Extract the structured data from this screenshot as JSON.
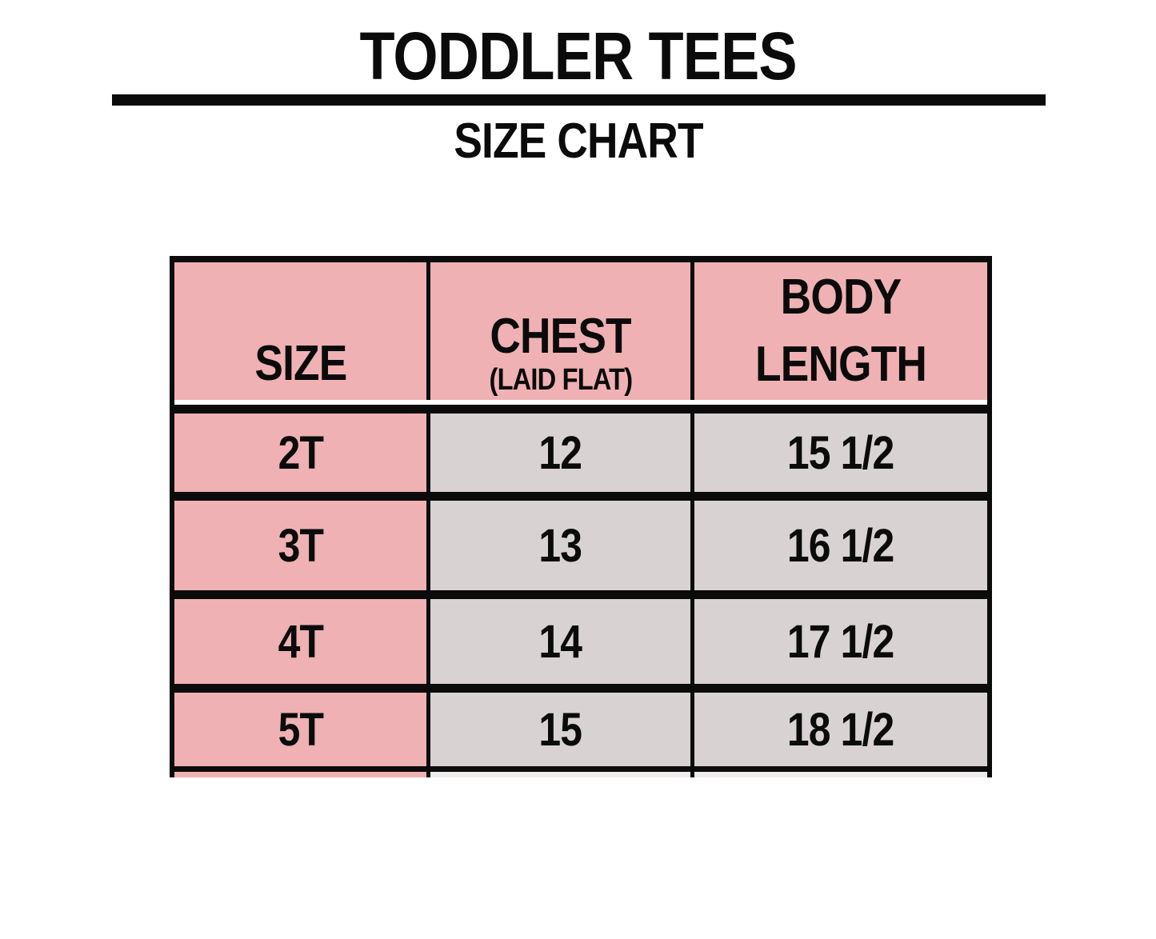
{
  "page": {
    "title": "TODDLER TEES",
    "subtitle": "SIZE CHART"
  },
  "table": {
    "headers": {
      "size": "SIZE",
      "chest": "CHEST",
      "chest_sub": "(LAID FLAT)",
      "body_length": "BODY LENGTH"
    },
    "rows": [
      {
        "size": "2T",
        "chest": "12",
        "body_length": "15 1/2"
      },
      {
        "size": "3T",
        "chest": "13",
        "body_length": "16 1/2"
      },
      {
        "size": "4T",
        "chest": "14",
        "body_length": "17 1/2"
      },
      {
        "size": "5T",
        "chest": "15",
        "body_length": "18 1/2"
      }
    ]
  },
  "colors": {
    "header_pink": "#efb1b3",
    "cell_gray": "#d8d2d3",
    "border_black": "#0b0b0b"
  },
  "chart_data": {
    "type": "table",
    "title": "TODDLER TEES",
    "subtitle": "SIZE CHART",
    "columns": [
      "SIZE",
      "CHEST (LAID FLAT)",
      "BODY LENGTH"
    ],
    "rows": [
      [
        "2T",
        "12",
        "15 1/2"
      ],
      [
        "3T",
        "13",
        "16 1/2"
      ],
      [
        "4T",
        "14",
        "17 1/2"
      ],
      [
        "5T",
        "15",
        "18 1/2"
      ]
    ]
  }
}
